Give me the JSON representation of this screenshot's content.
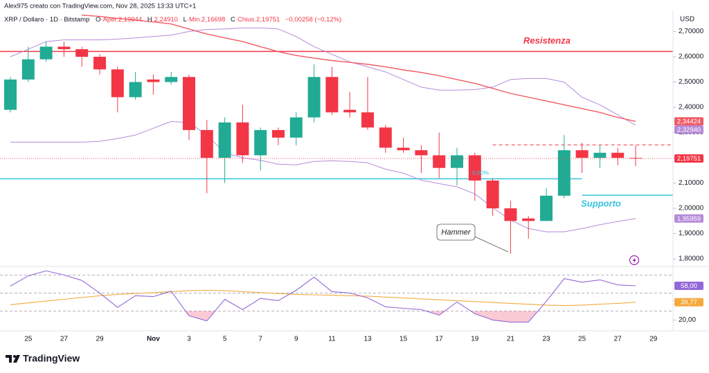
{
  "chart_data": {
    "type": "candlestick",
    "header": "Alex975 creato con TradingView.com, Nov 28, 2025 13:33 UTC+1",
    "symbol": "XRP / Dollaro · 1D · Bitstamp",
    "ohlc_legend": [
      {
        "key": "O",
        "text": "·Aper.2,19944"
      },
      {
        "key": "H",
        "text": "2,24910"
      },
      {
        "key": "L",
        "text": "·Min.2,16698"
      },
      {
        "key": "C",
        "text": "·Chius.2,19751"
      }
    ],
    "change_text": "−0,00258 (−0,12%)",
    "currency": "USD",
    "categories": [
      null,
      "25",
      null,
      "27",
      null,
      "29",
      null,
      null,
      "Nov",
      null,
      "3",
      null,
      "5",
      null,
      "7",
      null,
      "9",
      null,
      "11",
      null,
      "13",
      null,
      "15",
      null,
      "17",
      null,
      "19",
      null,
      "21",
      null,
      "23",
      null,
      "25",
      null,
      "27",
      null,
      "29",
      null
    ],
    "open": [
      2.39,
      2.51,
      2.59,
      2.64,
      2.63,
      2.6,
      2.55,
      2.44,
      2.51,
      2.5,
      2.52,
      2.31,
      2.2,
      2.34,
      2.21,
      2.31,
      2.28,
      2.36,
      2.52,
      2.39,
      2.38,
      2.32,
      2.24,
      2.23,
      2.21,
      2.16,
      2.21,
      2.11,
      2.0,
      1.96,
      1.95,
      2.05,
      2.23,
      2.2,
      2.22,
      2.19944,
      null,
      null
    ],
    "high": [
      2.52,
      2.64,
      2.66,
      2.66,
      2.64,
      2.61,
      2.56,
      2.54,
      2.53,
      2.54,
      2.53,
      2.35,
      2.36,
      2.41,
      2.32,
      2.32,
      2.38,
      2.57,
      2.56,
      2.46,
      2.52,
      2.33,
      2.28,
      2.25,
      2.3,
      2.24,
      2.22,
      2.12,
      2.03,
      1.97,
      2.08,
      2.29,
      2.26,
      2.25,
      2.24,
      2.2491,
      null,
      null
    ],
    "low": [
      2.38,
      2.5,
      2.58,
      2.6,
      2.56,
      2.53,
      2.38,
      2.43,
      2.45,
      2.49,
      2.27,
      2.06,
      2.1,
      2.18,
      2.15,
      2.25,
      2.25,
      2.34,
      2.37,
      2.36,
      2.31,
      2.22,
      2.22,
      2.14,
      2.12,
      2.09,
      2.03,
      1.97,
      1.82,
      1.88,
      1.95,
      2.04,
      2.14,
      2.16,
      2.17,
      2.16698,
      null,
      null
    ],
    "close": [
      2.51,
      2.59,
      2.64,
      2.63,
      2.6,
      2.55,
      2.44,
      2.5,
      2.5,
      2.52,
      2.31,
      2.2,
      2.34,
      2.21,
      2.31,
      2.28,
      2.36,
      2.52,
      2.38,
      2.38,
      2.32,
      2.24,
      2.23,
      2.21,
      2.16,
      2.21,
      2.11,
      2.0,
      1.95,
      1.95,
      2.05,
      2.23,
      2.2,
      2.22,
      2.2,
      2.19751,
      null,
      null
    ],
    "last_price_label": "2,19751",
    "up_color": "#22ab94",
    "down_color": "#f23645",
    "ylim": [
      1.77,
      2.77
    ],
    "yticks": [
      {
        "value": 2.7,
        "label": "2,70000"
      },
      {
        "value": 2.6,
        "label": "2,60000"
      },
      {
        "value": 2.5,
        "label": "2,50000"
      },
      {
        "value": 2.4,
        "label": "2,40000"
      },
      {
        "value": 2.3,
        "label": "2,30000"
      },
      {
        "value": 2.2,
        "label": "2,20000"
      },
      {
        "value": 2.1,
        "label": "2,10000"
      },
      {
        "value": 2.0,
        "label": "2,00000"
      },
      {
        "value": 1.9,
        "label": "1,90000"
      },
      {
        "value": 1.8,
        "label": "1,80000"
      }
    ],
    "overlays": [
      {
        "color": "#b58ad8",
        "price_label": "2,32940",
        "values": [
          2.6,
          2.63,
          2.66,
          2.667,
          2.667,
          2.667,
          2.67,
          2.675,
          2.68,
          2.686,
          2.7,
          2.708,
          2.71,
          2.714,
          2.714,
          2.71,
          2.68,
          2.64,
          2.61,
          2.58,
          2.56,
          2.54,
          2.51,
          2.48,
          2.468,
          2.468,
          2.47,
          2.48,
          2.51,
          2.514,
          2.514,
          2.5,
          2.44,
          2.41,
          2.37,
          2.3294,
          null,
          null
        ]
      },
      {
        "color": "#b58ad8",
        "price_label": "1,95959",
        "values": [
          2.262,
          2.262,
          2.262,
          2.262,
          2.262,
          2.265,
          2.276,
          2.29,
          2.317,
          2.344,
          2.34,
          2.29,
          2.22,
          2.2,
          2.19,
          2.175,
          2.172,
          2.186,
          2.188,
          2.186,
          2.18,
          2.155,
          2.139,
          2.112,
          2.098,
          2.085,
          2.057,
          2.003,
          1.953,
          1.92,
          1.907,
          1.907,
          1.92,
          1.935,
          1.948,
          1.95959,
          null,
          null
        ]
      },
      {
        "color": "#f05a64",
        "price_label": "2,34424",
        "values": [
          null,
          null,
          null,
          null,
          2.765,
          2.76,
          2.752,
          2.745,
          2.738,
          2.73,
          2.71,
          2.69,
          2.675,
          2.66,
          2.64,
          2.62,
          2.605,
          2.595,
          2.585,
          2.578,
          2.57,
          2.56,
          2.548,
          2.538,
          2.525,
          2.51,
          2.495,
          2.475,
          2.455,
          2.44,
          2.425,
          2.41,
          2.395,
          2.38,
          2.36,
          2.34424,
          null,
          null
        ]
      }
    ],
    "hlines": [
      {
        "value": 2.621,
        "color": "#f23645",
        "label": "Resistenza"
      },
      {
        "value": 2.117,
        "color": "#35c4dc",
        "end_index": 32
      },
      {
        "value": 2.052,
        "color": "#35c4dc",
        "start_index": 32,
        "label": "Supporto"
      },
      {
        "value": 2.251,
        "color": "#f23645",
        "start_index": 27,
        "end_index": 37,
        "dashed": true
      }
    ],
    "annotations": {
      "hammer": "Hammer",
      "percent": "0,00%"
    },
    "rsi": {
      "ylim": [
        8,
        78
      ],
      "yticks": [
        {
          "value": 20,
          "label": "20,00"
        }
      ],
      "levels": [
        70,
        50,
        30
      ],
      "oversold_fill": "#f48aa2",
      "series": [
        {
          "color": "#9368d8",
          "value_label": "58,00",
          "values": [
            57.7,
            69,
            74.6,
            70,
            64,
            50,
            34,
            47,
            46,
            52,
            24.6,
            19,
            43,
            31.5,
            44,
            41.5,
            53,
            67.7,
            51.5,
            50,
            44.6,
            34.6,
            33,
            31.5,
            25.4,
            40,
            27,
            20,
            17.7,
            17.7,
            40.8,
            66,
            62,
            64.6,
            59,
            58,
            null,
            null
          ]
        },
        {
          "color": "#f5a93f",
          "value_label": "39,77",
          "values": [
            37,
            39,
            41,
            43,
            45,
            47,
            48.5,
            49.5,
            50.5,
            51.5,
            52.5,
            53,
            52.5,
            51.5,
            50.5,
            49.5,
            48.5,
            48,
            47.5,
            47,
            46.5,
            45.5,
            44.5,
            43.5,
            42.5,
            41.5,
            40.5,
            39.5,
            38.5,
            37.5,
            36.5,
            36,
            36.5,
            37.5,
            38.5,
            39.77,
            null,
            null
          ]
        }
      ]
    }
  },
  "footer": {
    "brand": "TradingView"
  }
}
